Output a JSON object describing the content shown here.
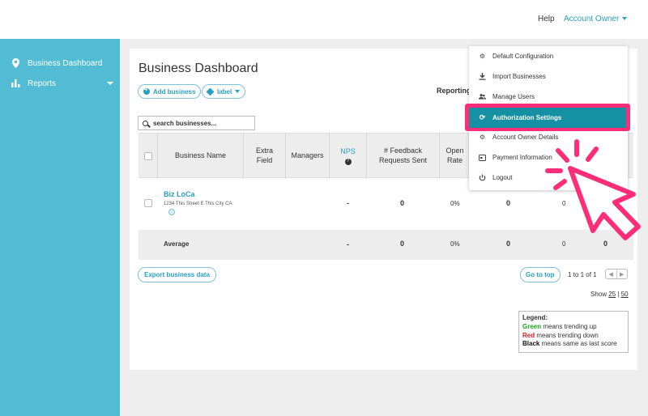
{
  "topbar": {
    "help": "Help",
    "account_owner": "Account Owner"
  },
  "sidebar": {
    "items": [
      {
        "label": "Business Dashboard",
        "icon": "location-pin-icon"
      },
      {
        "label": "Reports",
        "icon": "bar-chart-icon"
      }
    ]
  },
  "page": {
    "title": "Business Dashboard",
    "add_business": "Add business",
    "label_filter": "label",
    "reporting": "Reporting",
    "search_placeholder": "search businesses..."
  },
  "table": {
    "columns": [
      "Business Name",
      "Extra Field",
      "Managers",
      "NPS",
      "# Feedback Requests Sent",
      "Open Rate"
    ],
    "row": {
      "name": "Biz LoCa",
      "address": "1234 This Street E This City CA",
      "nps": "-",
      "feedback_sent": "0",
      "open_rate": "0%",
      "c1": "0",
      "c2": "0",
      "c3": "0"
    },
    "average": {
      "label": "Average",
      "nps": "-",
      "feedback_sent": "0",
      "open_rate": "0%",
      "c1": "0",
      "c2": "0",
      "c3": "0"
    }
  },
  "footer": {
    "export": "Export business data",
    "go_to_top": "Go to top",
    "pager": "1 to 1 of 1",
    "show_prefix": "Show",
    "show_25": "25",
    "show_sep": "|",
    "show_50": "50"
  },
  "legend": {
    "title": "Legend:",
    "green": "Green",
    "green_text": "means trending up",
    "red": "Red",
    "red_text": "means trending down",
    "black": "Black",
    "black_text": "means same as last score"
  },
  "dropdown": {
    "items": [
      {
        "label": "Default Configuration",
        "icon": "gear-icon"
      },
      {
        "label": "Import Businesses",
        "icon": "download-icon"
      },
      {
        "label": "Manage Users",
        "icon": "users-icon"
      },
      {
        "label": "Authorization Settings",
        "icon": "refresh-icon"
      },
      {
        "label": "Account Owner Details",
        "icon": "gear-icon"
      },
      {
        "label": "Payment Information",
        "icon": "card-icon"
      },
      {
        "label": "Logout",
        "icon": "power-icon"
      }
    ]
  },
  "colors": {
    "accent": "#2a9fc0",
    "sidebar": "#52bcd4",
    "highlight": "#ff2d78",
    "active_item": "#1591a3"
  }
}
